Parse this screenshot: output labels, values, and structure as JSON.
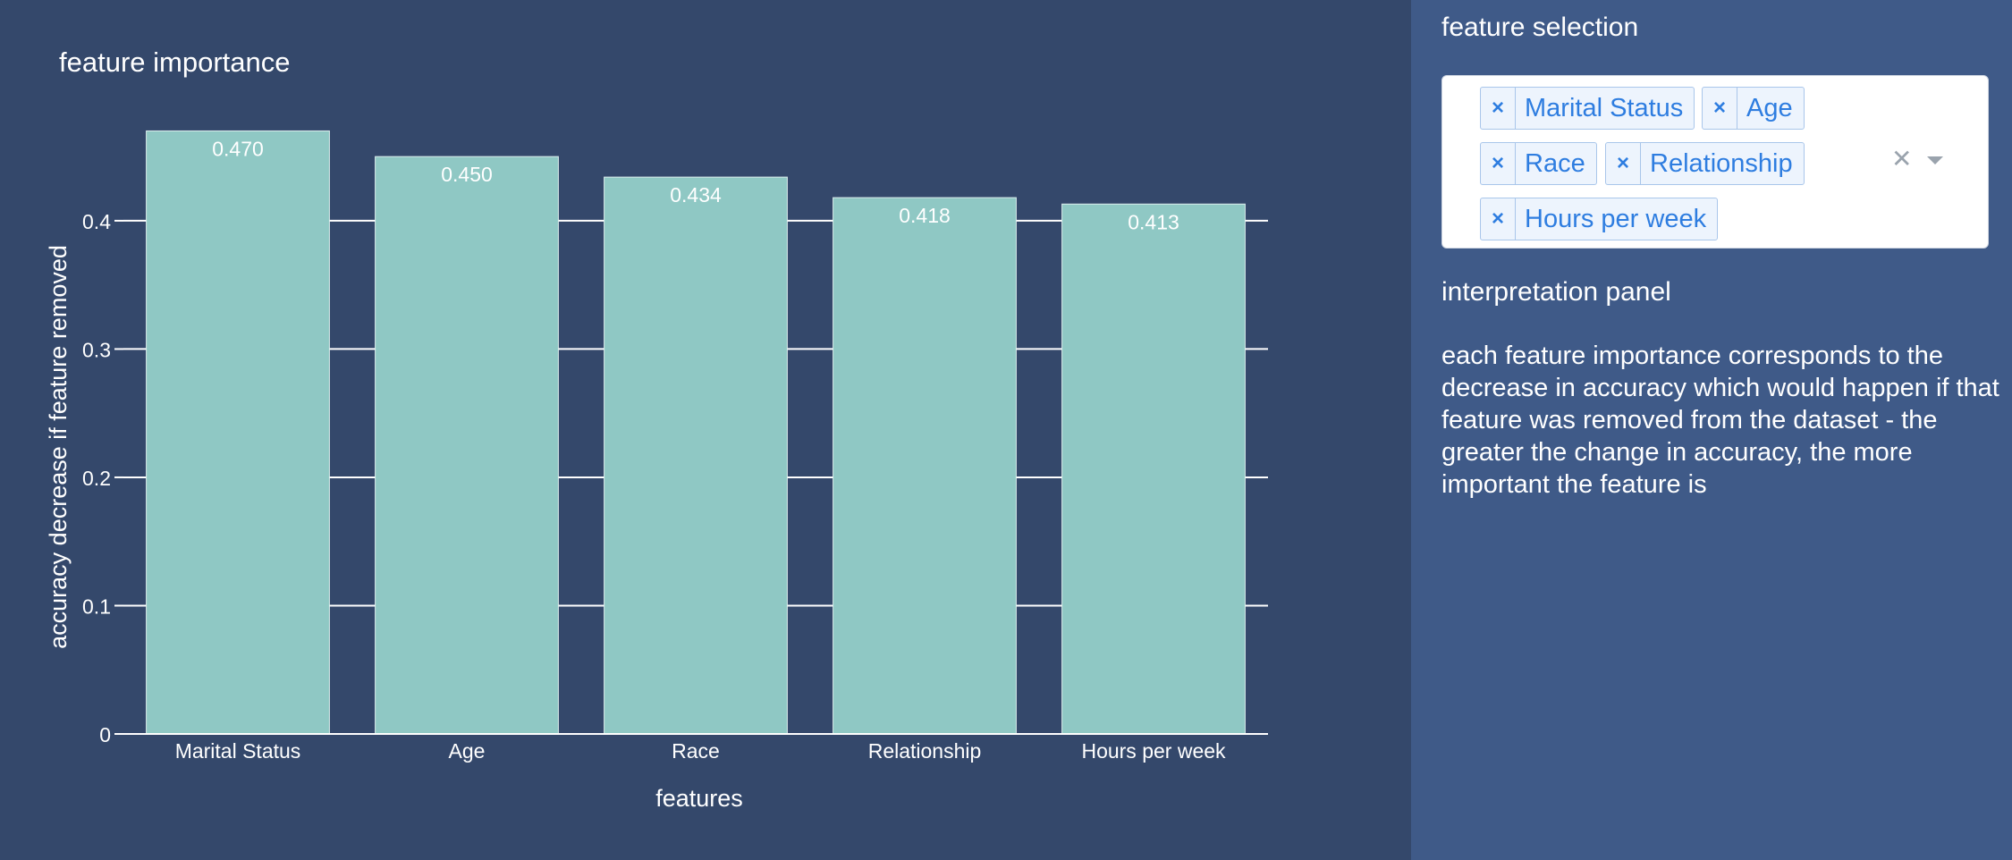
{
  "chart_data": {
    "type": "bar",
    "title": "feature importance",
    "xlabel": "features",
    "ylabel": "accuracy decrease if feature removed",
    "categories": [
      "Marital Status",
      "Age",
      "Race",
      "Relationship",
      "Hours per week"
    ],
    "values": [
      0.47,
      0.45,
      0.434,
      0.418,
      0.413
    ],
    "data_labels": [
      "0.470",
      "0.450",
      "0.434",
      "0.418",
      "0.413"
    ],
    "yticks": [
      0,
      0.1,
      0.2,
      0.3,
      0.4
    ],
    "ytick_labels": [
      "0",
      "0.1",
      "0.2",
      "0.3",
      "0.4"
    ],
    "ylim": [
      0,
      0.4947
    ],
    "grid": true,
    "bar_color": "#8fc8c4"
  },
  "side_panel": {
    "selection_heading": "feature selection",
    "selected_features": [
      "Marital Status",
      "Age",
      "Race",
      "Relationship",
      "Hours per week"
    ],
    "chip_remove_glyph": "×",
    "clear_all_glyph": "✕",
    "interpretation_heading": "interpretation panel",
    "interpretation_text": "each feature importance corresponds to the decrease in accuracy which would happen if that feature was removed from the dataset - the greater the change in accuracy, the more important the feature is"
  },
  "colors": {
    "chart_background": "#34486b",
    "panel_background": "#3f5a88",
    "chip_text": "#2e7de0"
  }
}
